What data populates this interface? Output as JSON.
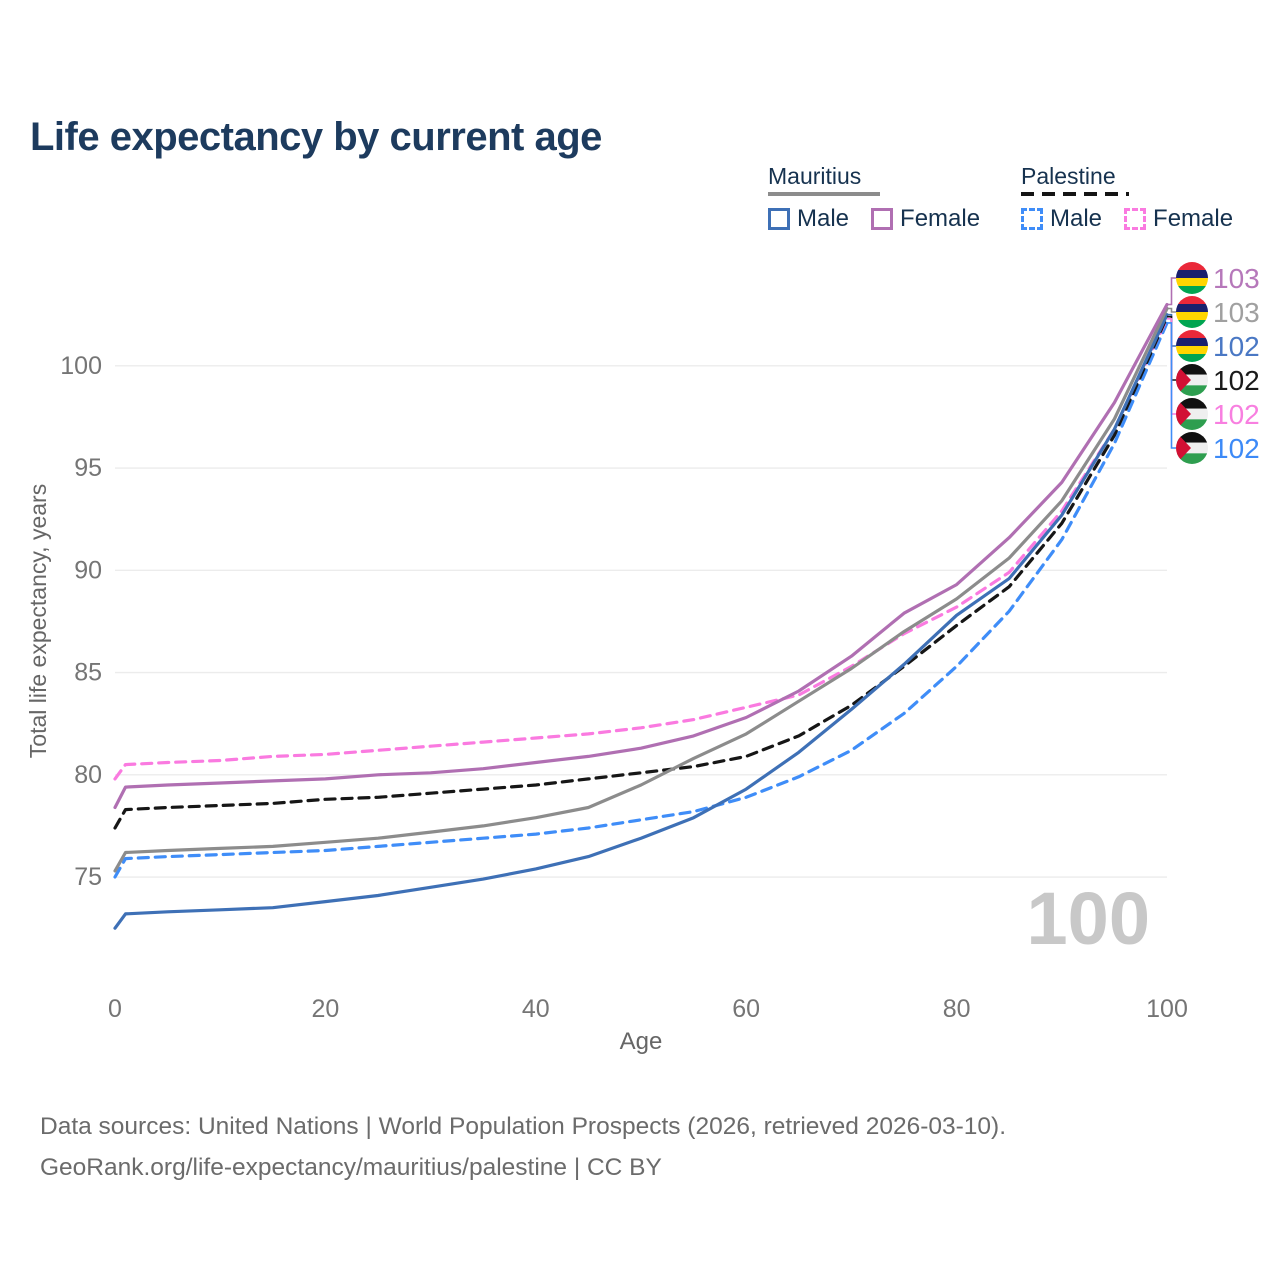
{
  "title": "Life expectancy by current age",
  "legend": {
    "mauritius": {
      "label": "Mauritius",
      "male": "Male",
      "female": "Female"
    },
    "palestine": {
      "label": "Palestine",
      "male": "Male",
      "female": "Female"
    }
  },
  "footer": {
    "line1": "Data sources: United Nations | World Population Prospects (2026, retrieved 2026-03-10).",
    "line2": "GeoRank.org/life-expectancy/mauritius/palestine | CC BY"
  },
  "chart_data": {
    "type": "line",
    "title": "Life expectancy by current age",
    "xlabel": "Age",
    "ylabel": "Total life expectancy, years",
    "xlim": [
      0,
      100
    ],
    "ylim": [
      72,
      103.5
    ],
    "xticks": [
      0,
      20,
      40,
      60,
      80,
      100
    ],
    "yticks": [
      75,
      80,
      85,
      90,
      95,
      100
    ],
    "grid": "horizontal",
    "legend_position": "top-right",
    "watermark": "100",
    "x": [
      0,
      1,
      5,
      10,
      15,
      20,
      25,
      30,
      35,
      40,
      45,
      50,
      55,
      60,
      65,
      70,
      75,
      80,
      85,
      90,
      95,
      100
    ],
    "series": [
      {
        "name": "Mauritius Female",
        "country": "mauritius",
        "sex": "female",
        "style": "solid",
        "color": "#b06fb2",
        "label_color": "#b678ba",
        "end_label": "103",
        "values": [
          78.4,
          79.4,
          79.5,
          79.6,
          79.7,
          79.8,
          80.0,
          80.1,
          80.3,
          80.6,
          80.9,
          81.3,
          81.9,
          82.8,
          84.1,
          85.8,
          87.9,
          89.3,
          91.6,
          94.3,
          98.2,
          103.0
        ]
      },
      {
        "name": "Mauritius Both sexes",
        "country": "mauritius",
        "sex": "both",
        "style": "solid",
        "color": "#8c8c8c",
        "label_color": "#a0a0a0",
        "end_label": "103",
        "values": [
          75.3,
          76.2,
          76.3,
          76.4,
          76.5,
          76.7,
          76.9,
          77.2,
          77.5,
          77.9,
          78.4,
          79.5,
          80.8,
          82.0,
          83.6,
          85.2,
          87.0,
          88.6,
          90.6,
          93.4,
          97.4,
          102.8
        ]
      },
      {
        "name": "Mauritius Male",
        "country": "mauritius",
        "sex": "male",
        "style": "solid",
        "color": "#3e70b6",
        "label_color": "#4a78c4",
        "end_label": "102",
        "values": [
          72.5,
          73.2,
          73.3,
          73.4,
          73.5,
          73.8,
          74.1,
          74.5,
          74.9,
          75.4,
          76.0,
          76.9,
          77.9,
          79.3,
          81.1,
          83.2,
          85.4,
          87.8,
          89.6,
          92.7,
          96.9,
          102.5
        ]
      },
      {
        "name": "Palestine Both sexes",
        "country": "palestine",
        "sex": "both",
        "style": "dashed",
        "color": "#161616",
        "label_color": "#1a1a1a",
        "end_label": "102",
        "values": [
          77.4,
          78.3,
          78.4,
          78.5,
          78.6,
          78.8,
          78.9,
          79.1,
          79.3,
          79.5,
          79.8,
          80.1,
          80.4,
          80.9,
          81.9,
          83.4,
          85.3,
          87.3,
          89.2,
          92.3,
          96.6,
          102.4
        ]
      },
      {
        "name": "Palestine Female",
        "country": "palestine",
        "sex": "female",
        "style": "dashed",
        "color": "#fa7ae0",
        "label_color": "#f87fe0",
        "end_label": "102",
        "values": [
          79.8,
          80.5,
          80.6,
          80.7,
          80.9,
          81.0,
          81.2,
          81.4,
          81.6,
          81.8,
          82.0,
          82.3,
          82.7,
          83.3,
          83.9,
          85.3,
          86.9,
          88.2,
          89.9,
          92.9,
          96.9,
          102.3
        ]
      },
      {
        "name": "Palestine Male",
        "country": "palestine",
        "sex": "male",
        "style": "dashed",
        "color": "#3f8df8",
        "label_color": "#3d8af7",
        "end_label": "102",
        "values": [
          75.0,
          75.9,
          76.0,
          76.1,
          76.2,
          76.3,
          76.5,
          76.7,
          76.9,
          77.1,
          77.4,
          77.8,
          78.2,
          78.9,
          79.9,
          81.2,
          83.0,
          85.3,
          88.0,
          91.5,
          96.2,
          102.1
        ]
      }
    ],
    "flag_colors": {
      "mauritius_stripes": [
        "#EA2839",
        "#1A206D",
        "#FFD500",
        "#00A551"
      ],
      "palestine_stripes": [
        "#111111",
        "#efefef",
        "#2e9e4f"
      ],
      "palestine_triangle": "#d21034"
    },
    "style_colors": {
      "gridline": "#ececec",
      "tick_label": "#757575",
      "axis_label": "#666666",
      "watermark": "#c8c8c8"
    }
  }
}
